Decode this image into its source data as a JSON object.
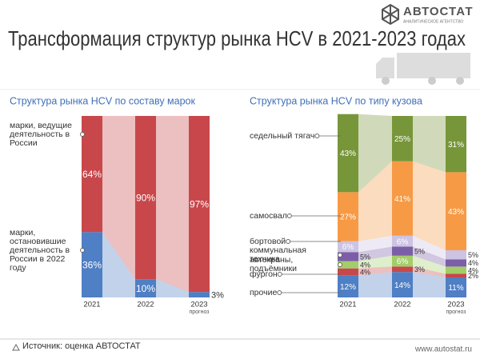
{
  "header": {
    "title": "Трансформация структур рынка HCV в 2021-2023 годах",
    "logo": "АВТОСТАТ",
    "logo_subtitle": "АНАЛИТИЧЕСКОЕ АГЕНТСТВО"
  },
  "chart_data": [
    {
      "type": "bar",
      "stacked": true,
      "title": "Структура рынка HCV по составу марок",
      "categories": [
        "2021",
        "2022",
        "2023"
      ],
      "category_notes": [
        null,
        null,
        "прогноз"
      ],
      "ylim": [
        0,
        100
      ],
      "series": [
        {
          "name": "марки, остановившие деятельность в России в 2022 году",
          "color": "#4f7fc4",
          "values": [
            36,
            10,
            3
          ],
          "value_labels": [
            "36%",
            "10%",
            "3%"
          ]
        },
        {
          "name": "марки, ведущие деятельность в России",
          "color": "#c8474b",
          "values": [
            64,
            90,
            97
          ],
          "value_labels": [
            "64%",
            "90%",
            "97%"
          ]
        }
      ]
    },
    {
      "type": "bar",
      "stacked": true,
      "title": "Структура рынка HCV по типу кузова",
      "categories": [
        "2021",
        "2022",
        "2023"
      ],
      "category_notes": [
        null,
        null,
        "прогноз"
      ],
      "ylim": [
        0,
        100
      ],
      "series": [
        {
          "name": "прочие",
          "color": "#4f7fc4",
          "values": [
            12,
            14,
            11
          ],
          "value_labels": [
            "12%",
            "14%",
            "11%"
          ]
        },
        {
          "name": "фургон",
          "color": "#c8474b",
          "values": [
            4,
            3,
            2
          ],
          "value_labels": [
            "4%",
            "3%",
            "2%"
          ]
        },
        {
          "name": "автокраны, подъёмники",
          "color": "#a3cd6a",
          "values": [
            4,
            6,
            4
          ],
          "value_labels": [
            "4%",
            "6%",
            "4%"
          ]
        },
        {
          "name": "коммунальная техника",
          "color": "#7b5ea7",
          "values": [
            5,
            5,
            4
          ],
          "value_labels": [
            "5%",
            "5%",
            "4%"
          ]
        },
        {
          "name": "бортовой",
          "color": "#cdc3e3",
          "values": [
            6,
            6,
            5
          ],
          "value_labels": [
            "6%",
            "6%",
            "5%"
          ]
        },
        {
          "name": "самосвал",
          "color": "#f79a45",
          "values": [
            27,
            41,
            43
          ],
          "value_labels": [
            "27%",
            "41%",
            "43%"
          ]
        },
        {
          "name": "седельный тягач",
          "color": "#77963a",
          "values": [
            43,
            25,
            31
          ],
          "value_labels": [
            "43%",
            "25%",
            "31%"
          ]
        }
      ]
    }
  ],
  "footer": {
    "source": "Источник: оценка АВТОСТАТ",
    "url": "www.autostat.ru"
  }
}
